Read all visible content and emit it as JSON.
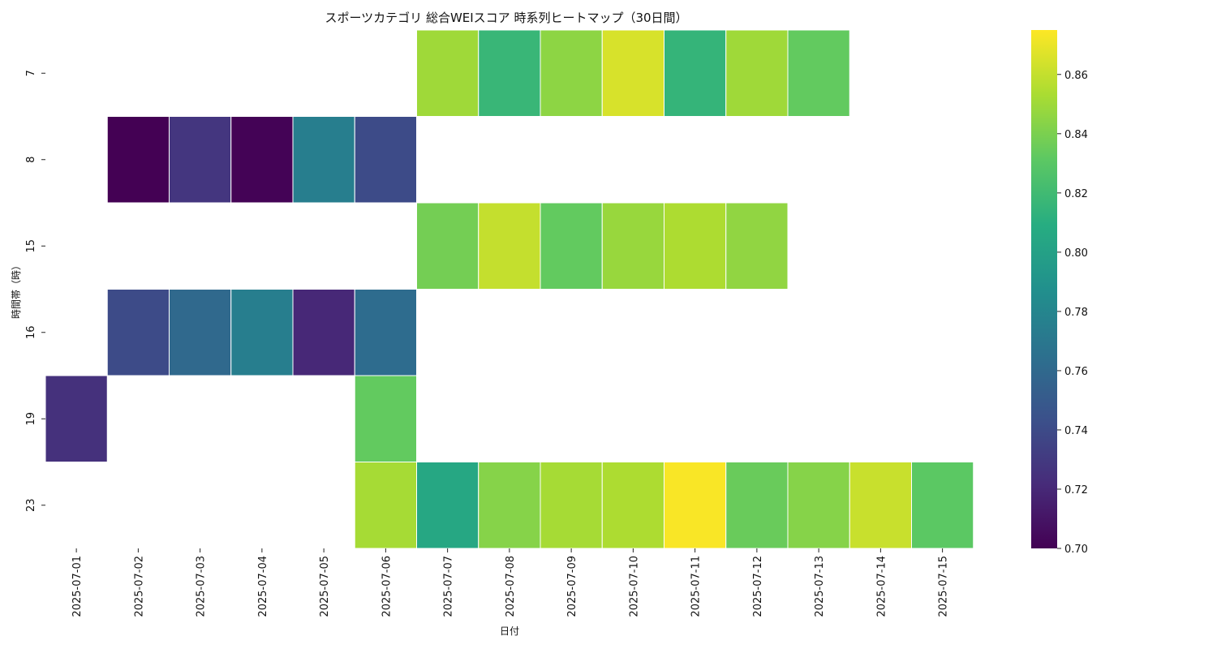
{
  "chart_data": {
    "type": "heatmap",
    "title": "スポーツカテゴリ 総合WEIスコア 時系列ヒートマップ（30日間）",
    "xlabel": "日付",
    "ylabel": "時間帯（時）",
    "x": [
      "2025-07-01",
      "2025-07-02",
      "2025-07-03",
      "2025-07-04",
      "2025-07-05",
      "2025-07-06",
      "2025-07-07",
      "2025-07-08",
      "2025-07-09",
      "2025-07-10",
      "2025-07-11",
      "2025-07-12",
      "2025-07-13",
      "2025-07-14",
      "2025-07-15"
    ],
    "y": [
      "7",
      "8",
      "15",
      "16",
      "19",
      "23"
    ],
    "values": [
      [
        null,
        null,
        null,
        null,
        null,
        null,
        0.85,
        0.817,
        0.845,
        0.865,
        0.815,
        0.85,
        0.833,
        null,
        null
      ],
      [
        null,
        0.7,
        0.728,
        0.701,
        0.775,
        0.74,
        null,
        null,
        null,
        null,
        null,
        null,
        null,
        null,
        null
      ],
      [
        null,
        null,
        null,
        null,
        null,
        null,
        0.838,
        0.86,
        0.833,
        0.848,
        0.854,
        0.846,
        null,
        null,
        null
      ],
      [
        null,
        0.74,
        0.76,
        0.775,
        0.72,
        0.762,
        null,
        null,
        null,
        null,
        null,
        null,
        null,
        null,
        null
      ],
      [
        0.725,
        null,
        null,
        null,
        null,
        0.833,
        null,
        null,
        null,
        null,
        null,
        null,
        null,
        null,
        null
      ],
      [
        null,
        null,
        null,
        null,
        null,
        0.852,
        0.805,
        0.843,
        0.852,
        0.854,
        0.874,
        0.835,
        0.843,
        0.861,
        0.831
      ]
    ],
    "colorscale": "viridis",
    "colorbar": {
      "range": [
        0.7,
        0.875
      ],
      "ticks": [
        "0.70",
        "0.72",
        "0.74",
        "0.76",
        "0.78",
        "0.80",
        "0.82",
        "0.84",
        "0.86"
      ]
    },
    "grid": false,
    "legend": "colorbar-right"
  }
}
